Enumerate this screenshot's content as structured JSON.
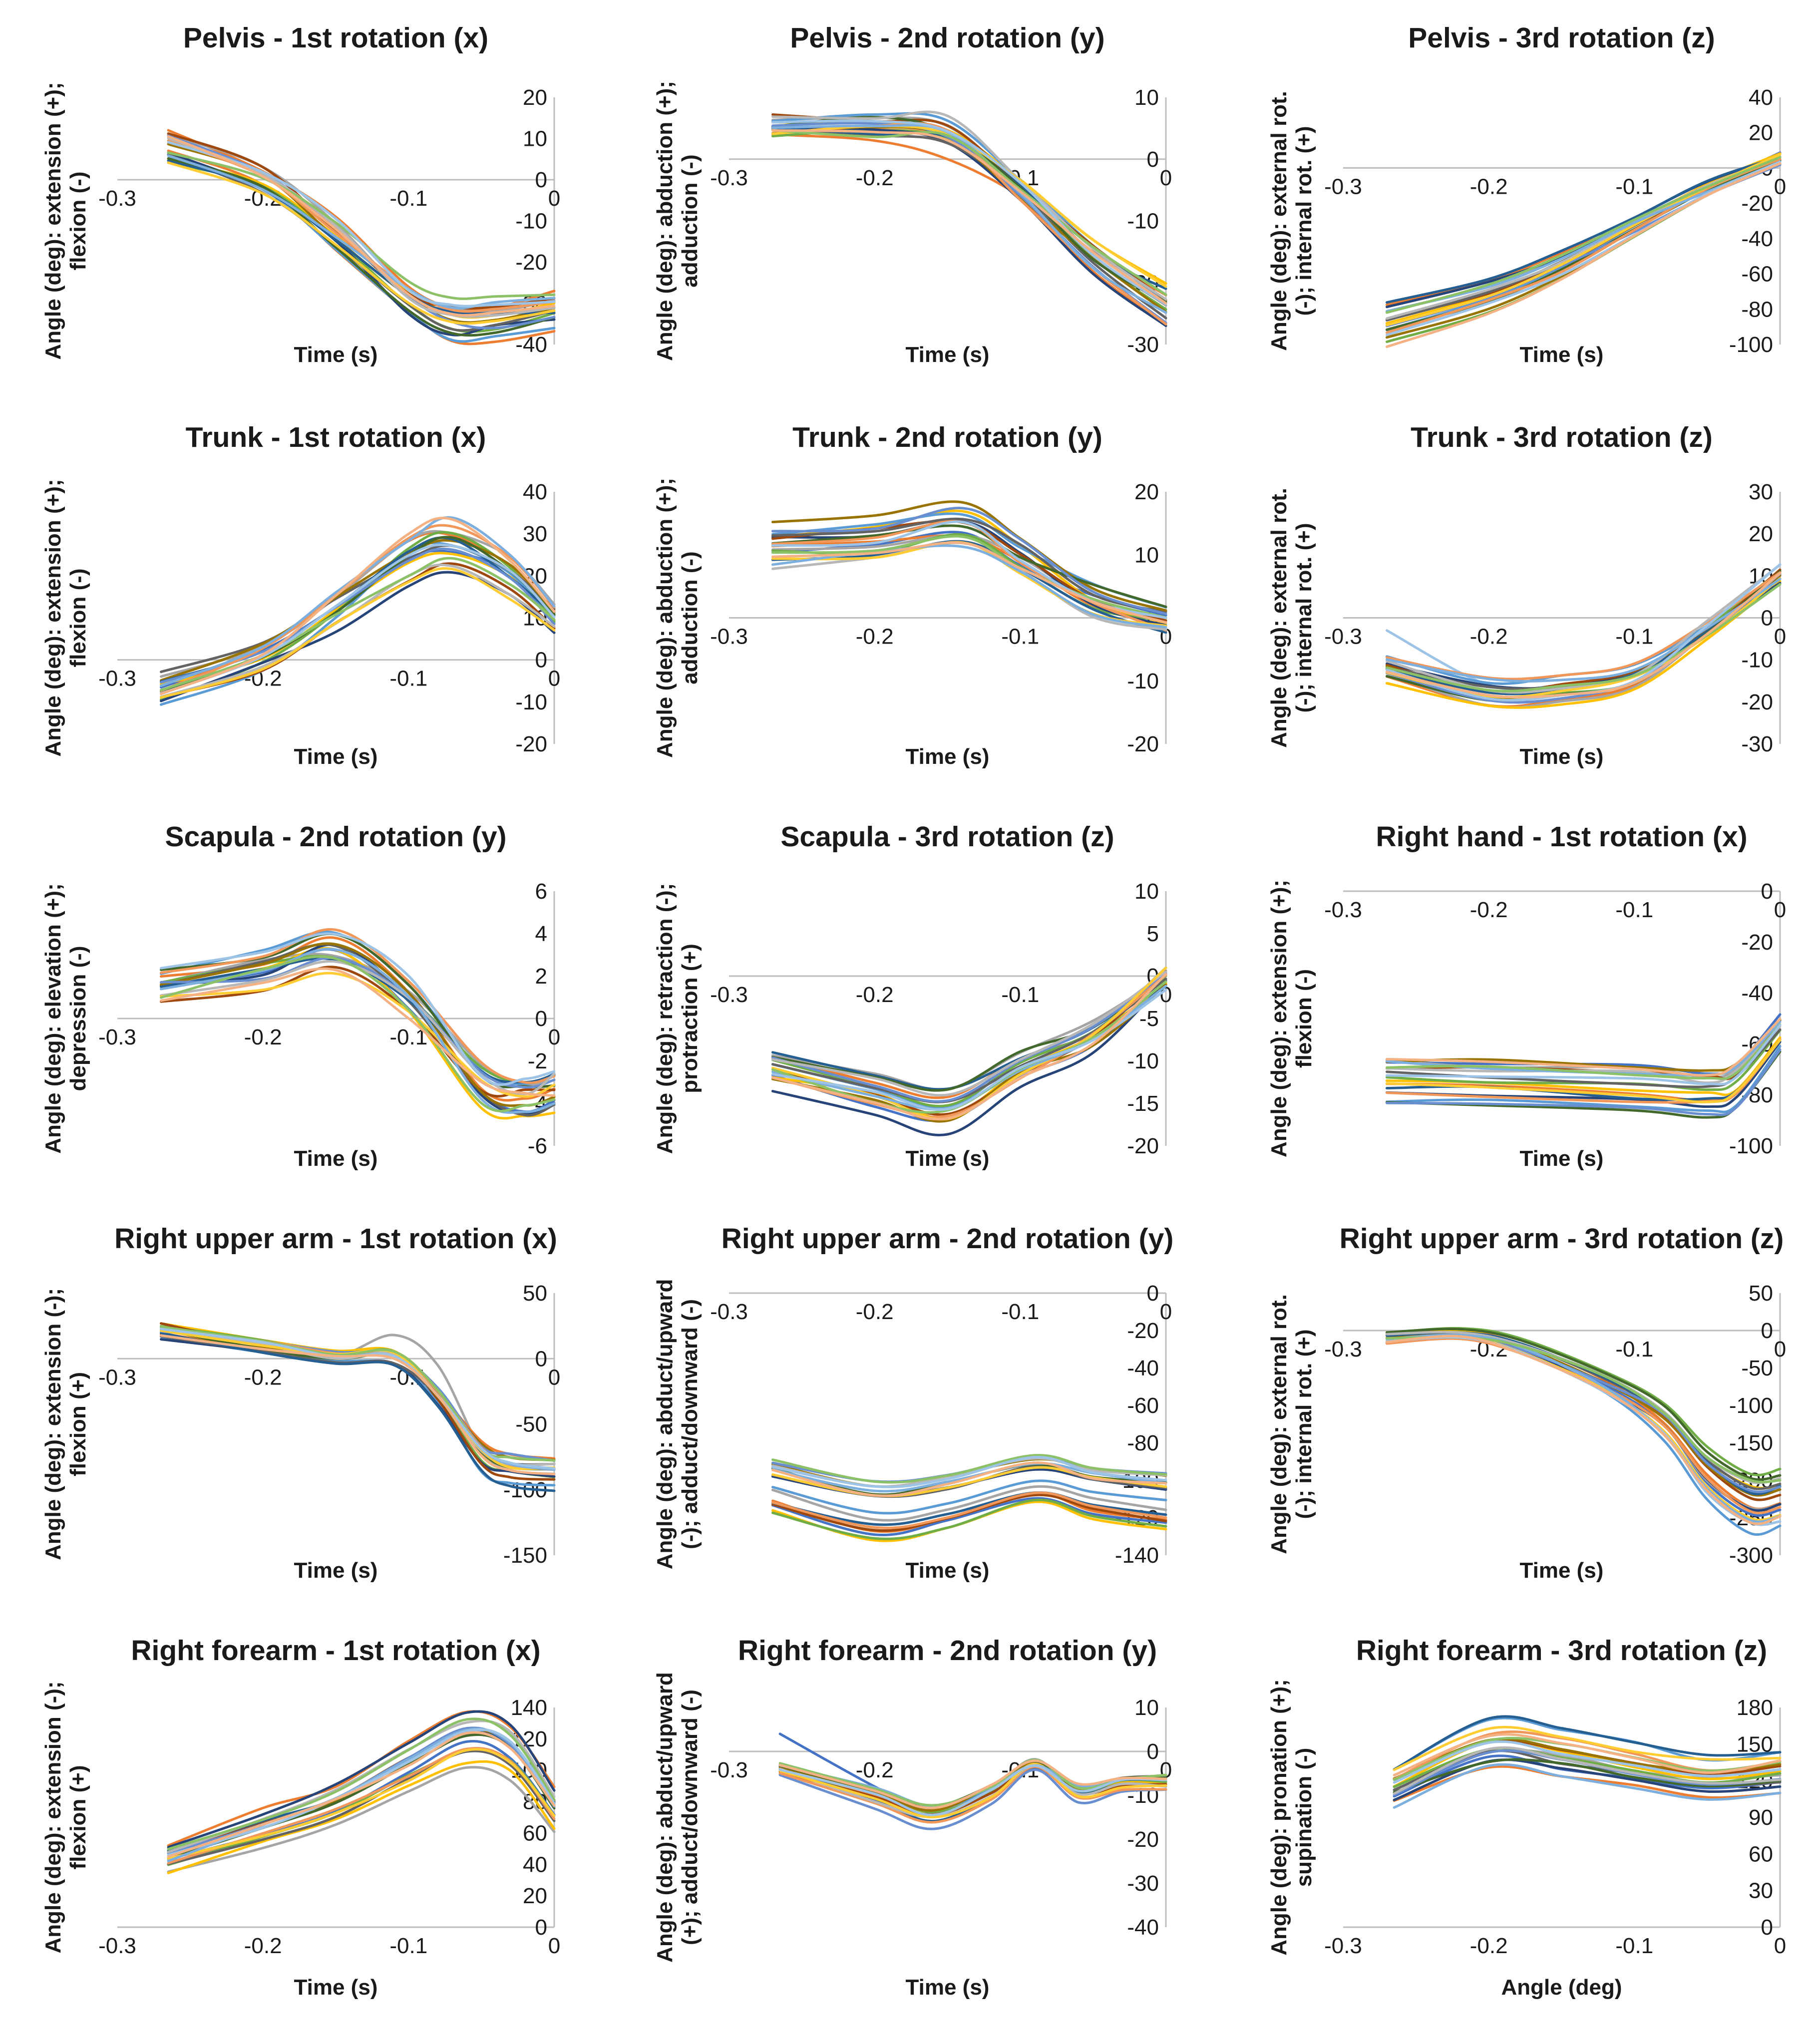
{
  "palette": [
    "#4472c4",
    "#ed7d31",
    "#a5a5a5",
    "#ffc000",
    "#5b9bd5",
    "#70ad47",
    "#264478",
    "#9e480e",
    "#636363",
    "#997300",
    "#255e91",
    "#43682b",
    "#698ed0",
    "#f1975a",
    "#b7b7b7",
    "#ffcd33",
    "#7cafdd",
    "#8cc168",
    "#9dc3e6",
    "#f4b183"
  ],
  "chart_data": [
    {
      "type": "line",
      "title": "Pelvis - 1st rotation (x)",
      "ylabel": "Angle (deg): extension (+); flexion (-)",
      "xlabel": "Time (s)",
      "xlim": [
        -0.3,
        0
      ],
      "ylim": [
        -40,
        20
      ],
      "xticks": [
        -0.3,
        -0.2,
        -0.1,
        0
      ],
      "yticks": [
        20,
        10,
        0,
        -10,
        -20,
        -30,
        -40
      ],
      "x": [
        -0.265,
        -0.2,
        -0.15,
        -0.1,
        -0.07,
        -0.04,
        0
      ],
      "mean": [
        8,
        0,
        -13,
        -28,
        -33,
        -33,
        -31
      ],
      "spread": 3,
      "outlier": {
        "color": "#ed7d31",
        "y": [
          12,
          2,
          -9,
          -26,
          -31,
          -31,
          -27
        ]
      }
    },
    {
      "type": "line",
      "title": "Pelvis - 2nd rotation (y)",
      "ylabel": "Angle (deg): abduction (+); adduction (-)",
      "xlabel": "Time (s)",
      "xlim": [
        -0.3,
        0
      ],
      "ylim": [
        -30,
        10
      ],
      "xticks": [
        -0.3,
        -0.2,
        -0.1,
        0
      ],
      "yticks": [
        10,
        0,
        -10,
        -20,
        -30
      ],
      "x": [
        -0.27,
        -0.2,
        -0.15,
        -0.1,
        -0.05,
        0
      ],
      "mean": [
        6,
        6,
        5,
        -4,
        -15,
        -23
      ],
      "spread": 2,
      "outlier": {
        "color": "#ed7d31",
        "y": [
          4,
          3,
          0,
          -6,
          -15,
          -22
        ]
      }
    },
    {
      "type": "line",
      "title": "Pelvis - 3rd rotation (z)",
      "ylabel": "Angle (deg): external rot. (-); internal rot. (+)",
      "xlabel": "Time (s)",
      "xlim": [
        -0.3,
        0
      ],
      "ylim": [
        -100,
        40
      ],
      "xticks": [
        -0.3,
        -0.2,
        -0.1,
        0
      ],
      "yticks": [
        40,
        20,
        0,
        -20,
        -40,
        -60,
        -80,
        -100
      ],
      "x": [
        -0.27,
        -0.2,
        -0.15,
        -0.1,
        -0.05,
        0
      ],
      "mean": [
        -88,
        -72,
        -55,
        -33,
        -12,
        5
      ],
      "spread": 3
    },
    {
      "type": "line",
      "title": "Trunk - 1st rotation (x)",
      "ylabel": "Angle (deg): extension (+); flexion (-)",
      "xlabel": "Time (s)",
      "xlim": [
        -0.3,
        0
      ],
      "ylim": [
        -20,
        40
      ],
      "xticks": [
        -0.3,
        -0.2,
        -0.1,
        0
      ],
      "yticks": [
        40,
        30,
        20,
        10,
        0,
        -10,
        -20
      ],
      "x": [
        -0.27,
        -0.2,
        -0.15,
        -0.1,
        -0.07,
        -0.03,
        0
      ],
      "mean": [
        -7,
        1,
        12,
        24,
        27,
        20,
        10
      ],
      "spread": 3
    },
    {
      "type": "line",
      "title": "Trunk - 2nd rotation (y)",
      "ylabel": "Angle (deg): abduction (+); adduction (-)",
      "xlabel": "Time (s)",
      "xlim": [
        -0.3,
        0
      ],
      "ylim": [
        -20,
        20
      ],
      "xticks": [
        -0.3,
        -0.2,
        -0.1,
        0
      ],
      "yticks": [
        20,
        10,
        0,
        -10,
        -20
      ],
      "x": [
        -0.27,
        -0.2,
        -0.14,
        -0.1,
        -0.05,
        0
      ],
      "mean": [
        12,
        13,
        15,
        10,
        3,
        0
      ],
      "spread": 2
    },
    {
      "type": "line",
      "title": "Trunk - 3rd rotation (z)",
      "ylabel": "Angle (deg): external rot. (-); internal rot. (+)",
      "xlabel": "Time (s)",
      "xlim": [
        -0.3,
        0
      ],
      "ylim": [
        -30,
        30
      ],
      "xticks": [
        -0.3,
        -0.2,
        -0.1,
        0
      ],
      "yticks": [
        30,
        20,
        10,
        0,
        -10,
        -20,
        -30
      ],
      "x": [
        -0.27,
        -0.2,
        -0.15,
        -0.1,
        -0.05,
        0
      ],
      "mean": [
        -12,
        -18,
        -17,
        -14,
        -3,
        10
      ],
      "spread": 2,
      "outlier": {
        "color": "#9dc3e6",
        "y": [
          -3,
          -16,
          -16,
          -14,
          -3,
          10
        ]
      }
    },
    {
      "type": "line",
      "title": "Scapula - 2nd rotation (y)",
      "ylabel": "Angle (deg): elevation (+); depression (-)",
      "xlabel": "Time (s)",
      "xlim": [
        -0.3,
        0
      ],
      "ylim": [
        -6,
        6
      ],
      "xticks": [
        -0.3,
        -0.2,
        -0.1,
        0
      ],
      "yticks": [
        6,
        4,
        2,
        0,
        -2,
        -4,
        -6
      ],
      "x": [
        -0.27,
        -0.2,
        -0.15,
        -0.1,
        -0.05,
        -0.02,
        0
      ],
      "mean": [
        1.7,
        2.5,
        3.3,
        1.0,
        -3.0,
        -3.6,
        -3.2
      ],
      "spread": 0.7
    },
    {
      "type": "line",
      "title": "Scapula - 3rd rotation (z)",
      "ylabel": "Angle (deg): retraction (-); protraction (+)",
      "xlabel": "Time (s)",
      "xlim": [
        -0.3,
        0
      ],
      "ylim": [
        -20,
        10
      ],
      "xticks": [
        -0.3,
        -0.2,
        -0.1,
        0
      ],
      "yticks": [
        10,
        5,
        0,
        -5,
        -10,
        -15,
        -20
      ],
      "x": [
        -0.27,
        -0.2,
        -0.15,
        -0.1,
        -0.05,
        0
      ],
      "mean": [
        -11,
        -14,
        -16,
        -11,
        -7,
        0
      ],
      "spread": 1.3
    },
    {
      "type": "line",
      "title": "Right hand - 1st rotation (x)",
      "ylabel": "Angle (deg): extension (+); flexion (-)",
      "xlabel": "Time (s)",
      "xlim": [
        -0.3,
        0
      ],
      "ylim": [
        -100,
        0
      ],
      "xticks": [
        -0.3,
        -0.2,
        -0.1,
        0
      ],
      "yticks": [
        0,
        -20,
        -40,
        -60,
        -80,
        -100
      ],
      "x": [
        -0.27,
        -0.2,
        -0.1,
        -0.05,
        -0.03,
        0
      ],
      "mean": [
        -73,
        -74,
        -76,
        -78,
        -75,
        -55
      ],
      "spread": 3
    },
    {
      "type": "line",
      "title": "Right upper arm - 1st rotation (x)",
      "ylabel": "Angle (deg): extension (-); flexion (+)",
      "xlabel": "Time (s)",
      "xlim": [
        -0.3,
        0
      ],
      "ylim": [
        -150,
        50
      ],
      "xticks": [
        -0.3,
        -0.2,
        -0.1,
        0
      ],
      "yticks": [
        50,
        0,
        -50,
        -100,
        -150
      ],
      "x": [
        -0.27,
        -0.2,
        -0.15,
        -0.11,
        -0.08,
        -0.05,
        -0.03,
        0
      ],
      "mean": [
        20,
        8,
        0,
        0,
        -30,
        -75,
        -85,
        -88
      ],
      "spread": 5,
      "outlier": {
        "color": "#a5a5a5",
        "y": [
          18,
          8,
          2,
          18,
          -5,
          -70,
          -85,
          -88
        ]
      }
    },
    {
      "type": "line",
      "title": "Right upper arm - 2nd rotation (y)",
      "ylabel": "Angle (deg): abduct/upward (-); adduct/downward (-)",
      "xlabel": "Time (s)",
      "xlim": [
        -0.3,
        0
      ],
      "ylim": [
        -140,
        0
      ],
      "xticks": [
        -0.3,
        -0.2,
        -0.1,
        0
      ],
      "yticks": [
        0,
        -20,
        -40,
        -60,
        -80,
        -100,
        -120,
        -140
      ],
      "x": [
        -0.27,
        -0.2,
        -0.15,
        -0.09,
        -0.05,
        0
      ],
      "mean": [
        -102,
        -115,
        -110,
        -98,
        -105,
        -110
      ],
      "spread": 3
    },
    {
      "type": "line",
      "title": "Right upper arm - 3rd rotation (z)",
      "ylabel": "Angle (deg): external rot. (-); internal rot. (+)",
      "xlabel": "Time (s)",
      "xlim": [
        -0.3,
        0
      ],
      "ylim": [
        -300,
        50
      ],
      "xticks": [
        -0.3,
        -0.2,
        -0.1,
        0
      ],
      "yticks": [
        50,
        0,
        -50,
        -100,
        -150,
        -200,
        -250,
        -300
      ],
      "x": [
        -0.27,
        -0.22,
        -0.18,
        -0.12,
        -0.08,
        -0.05,
        -0.02,
        0
      ],
      "mean": [
        -10,
        -5,
        -20,
        -70,
        -120,
        -190,
        -230,
        -225
      ],
      "spread": 7
    },
    {
      "type": "line",
      "title": "Right forearm - 1st rotation (x)",
      "ylabel": "Angle (deg): extension (-); flexion (+)",
      "xlabel": "Time (s)",
      "xlim": [
        -0.3,
        0
      ],
      "ylim": [
        0,
        140
      ],
      "xticks": [
        -0.3,
        -0.2,
        -0.1,
        0
      ],
      "yticks": [
        140,
        120,
        100,
        80,
        60,
        40,
        20,
        0
      ],
      "x": [
        -0.265,
        -0.2,
        -0.15,
        -0.1,
        -0.06,
        -0.03,
        0
      ],
      "mean": [
        44,
        63,
        78,
        102,
        120,
        112,
        75
      ],
      "spread": 4
    },
    {
      "type": "line",
      "title": "Right forearm - 2nd rotation (y)",
      "ylabel": "Angle (deg): abduct/upward (+); adduct/downward (-)",
      "xlabel": "Time (s)",
      "xlim": [
        -0.3,
        0
      ],
      "ylim": [
        -40,
        10
      ],
      "xticks": [
        -0.3,
        -0.2,
        -0.1,
        0
      ],
      "yticks": [
        10,
        0,
        -10,
        -20,
        -30,
        -40
      ],
      "x": [
        -0.265,
        -0.2,
        -0.16,
        -0.12,
        -0.09,
        -0.06,
        -0.03,
        0
      ],
      "mean": [
        -4,
        -10,
        -14,
        -9,
        -3,
        -9,
        -7,
        -7
      ],
      "spread": 1.3,
      "outlier": {
        "color": "#4472c4",
        "y": [
          4,
          -8,
          -14,
          -9,
          -3,
          -9,
          -7,
          -7
        ]
      }
    },
    {
      "type": "line",
      "title": "Right forearm - 3rd rotation (z)",
      "ylabel": "Angle (deg): pronation (+); supination (-)",
      "xlabel": "Angle (deg)",
      "xlim": [
        -0.3,
        0
      ],
      "ylim": [
        0,
        180
      ],
      "xticks": [
        -0.3,
        -0.2,
        -0.1,
        0
      ],
      "yticks": [
        180,
        150,
        120,
        90,
        60,
        30,
        0
      ],
      "x": [
        -0.265,
        -0.2,
        -0.15,
        -0.1,
        -0.05,
        0
      ],
      "mean": [
        118,
        152,
        145,
        135,
        125,
        130
      ],
      "spread": 6
    }
  ]
}
